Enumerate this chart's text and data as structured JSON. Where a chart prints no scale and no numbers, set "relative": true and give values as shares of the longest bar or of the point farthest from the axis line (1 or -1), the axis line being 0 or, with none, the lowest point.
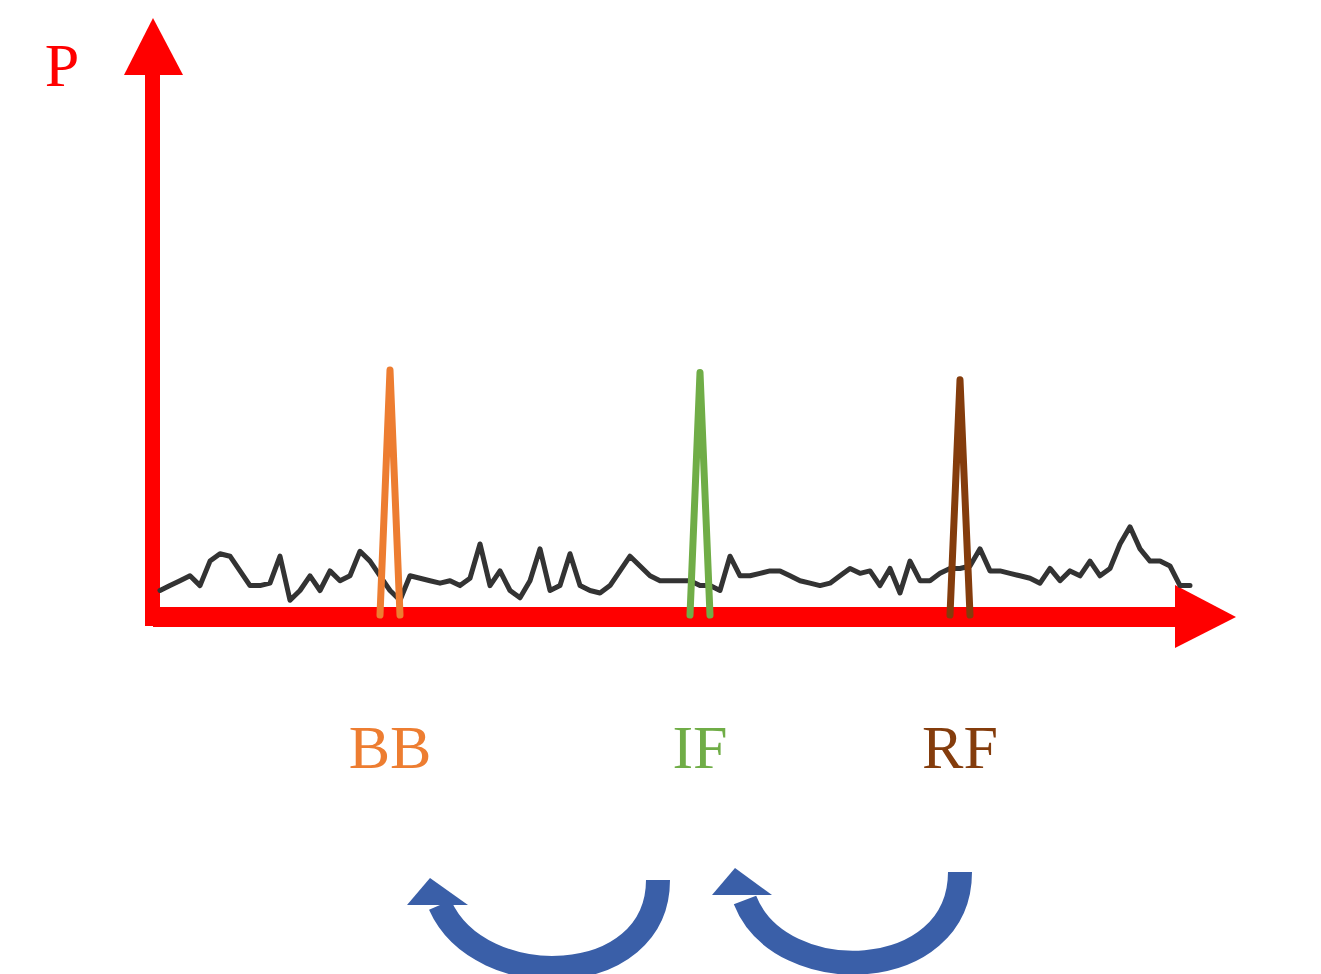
{
  "chart_data": {
    "type": "line",
    "relative": true,
    "ylabel": "P",
    "categories": [
      null,
      null,
      null,
      null,
      null,
      null,
      null,
      null,
      null,
      null,
      null,
      null,
      null,
      null,
      null,
      null,
      null,
      null,
      null,
      null,
      null,
      null,
      null,
      null,
      null,
      null,
      null,
      null,
      null,
      null,
      null,
      null,
      null,
      null,
      null,
      null,
      null,
      null,
      null,
      null,
      null,
      null,
      null,
      null,
      null,
      null,
      null,
      null,
      null,
      null,
      null,
      null,
      null,
      null,
      null,
      null,
      null,
      null,
      null,
      null,
      null,
      null,
      null,
      null,
      null,
      null,
      null,
      null,
      null,
      null,
      null,
      null,
      null,
      null,
      null,
      null,
      null,
      null,
      null,
      null,
      null,
      null,
      null,
      null,
      null,
      null,
      null,
      null,
      null,
      null,
      null,
      null,
      null,
      null,
      null,
      null,
      null,
      null,
      null,
      null,
      null,
      null,
      null,
      null
    ],
    "series": [
      {
        "color": "#333333",
        "values": [
          0.1,
          0.12,
          0.14,
          0.16,
          0.12,
          0.22,
          0.25,
          0.24,
          0.18,
          0.12,
          0.12,
          0.13,
          0.24,
          0.06,
          0.1,
          0.16,
          0.1,
          0.18,
          0.14,
          0.16,
          0.26,
          0.22,
          0.16,
          0.1,
          0.06,
          0.16,
          0.15,
          0.14,
          0.13,
          0.14,
          0.12,
          0.15,
          0.29,
          0.12,
          0.18,
          0.1,
          0.07,
          0.14,
          0.27,
          0.1,
          0.12,
          0.25,
          0.12,
          0.1,
          0.09,
          0.12,
          0.18,
          0.24,
          0.2,
          0.16,
          0.14,
          0.14,
          0.14,
          0.14,
          0.12,
          0.12,
          0.1,
          0.24,
          0.16,
          0.16,
          0.17,
          0.18,
          0.18,
          0.16,
          0.14,
          0.13,
          0.12,
          0.13,
          0.16,
          0.19,
          0.17,
          0.18,
          0.12,
          0.19,
          0.09,
          0.22,
          0.14,
          0.14,
          0.17,
          0.19,
          0.19,
          0.2,
          0.27,
          0.18,
          0.18,
          0.17,
          0.16,
          0.15,
          0.13,
          0.19,
          0.14,
          0.18,
          0.16,
          0.22,
          0.16,
          0.19,
          0.29,
          0.36,
          0.27,
          0.22,
          0.22,
          0.2,
          0.12,
          0.12
        ]
      },
      {
        "name": "BB",
        "color": "#ed7d31",
        "values": [
          null,
          null,
          null,
          null,
          null,
          null,
          null,
          null,
          null,
          null,
          null,
          null,
          null,
          null,
          null,
          null,
          null,
          null,
          null,
          null,
          null,
          null,
          0,
          1,
          0,
          null,
          null,
          null,
          null,
          null,
          null,
          null,
          null,
          null,
          null,
          null,
          null,
          null,
          null,
          null,
          null,
          null,
          null,
          null,
          null,
          null,
          null,
          null,
          null,
          null,
          null,
          null,
          null,
          null,
          null,
          null,
          null,
          null,
          null,
          null,
          null,
          null,
          null,
          null,
          null,
          null,
          null,
          null,
          null,
          null,
          null,
          null,
          null,
          null,
          null,
          null,
          null,
          null,
          null,
          null,
          null,
          null,
          null,
          null,
          null,
          null,
          null,
          null,
          null,
          null,
          null,
          null,
          null,
          null,
          null,
          null,
          null,
          null,
          null,
          null,
          null,
          null,
          null,
          null
        ]
      },
      {
        "name": "IF",
        "color": "#70ad47",
        "values": [
          null,
          null,
          null,
          null,
          null,
          null,
          null,
          null,
          null,
          null,
          null,
          null,
          null,
          null,
          null,
          null,
          null,
          null,
          null,
          null,
          null,
          null,
          null,
          null,
          null,
          null,
          null,
          null,
          null,
          null,
          null,
          null,
          null,
          null,
          null,
          null,
          null,
          null,
          null,
          null,
          null,
          null,
          null,
          null,
          null,
          null,
          null,
          null,
          null,
          null,
          null,
          null,
          null,
          0,
          0.99,
          0,
          null,
          null,
          null,
          null,
          null,
          null,
          null,
          null,
          null,
          null,
          null,
          null,
          null,
          null,
          null,
          null,
          null,
          null,
          null,
          null,
          null,
          null,
          null,
          null,
          null,
          null,
          null,
          null,
          null,
          null,
          null,
          null,
          null,
          null,
          null,
          null,
          null,
          null,
          null,
          null,
          null,
          null,
          null,
          null,
          null,
          null,
          null,
          null
        ]
      },
      {
        "name": "RF",
        "color": "#843c0c",
        "values": [
          null,
          null,
          null,
          null,
          null,
          null,
          null,
          null,
          null,
          null,
          null,
          null,
          null,
          null,
          null,
          null,
          null,
          null,
          null,
          null,
          null,
          null,
          null,
          null,
          null,
          null,
          null,
          null,
          null,
          null,
          null,
          null,
          null,
          null,
          null,
          null,
          null,
          null,
          null,
          null,
          null,
          null,
          null,
          null,
          null,
          null,
          null,
          null,
          null,
          null,
          null,
          null,
          null,
          null,
          null,
          null,
          null,
          null,
          null,
          null,
          null,
          null,
          null,
          null,
          null,
          null,
          null,
          null,
          null,
          null,
          null,
          null,
          null,
          null,
          null,
          null,
          null,
          null,
          null,
          0,
          0.96,
          0,
          null,
          null,
          null,
          null,
          null,
          null,
          null,
          null,
          null,
          null,
          null,
          null,
          null,
          null,
          null,
          null,
          null,
          null,
          null,
          null,
          null,
          null
        ]
      }
    ]
  }
}
